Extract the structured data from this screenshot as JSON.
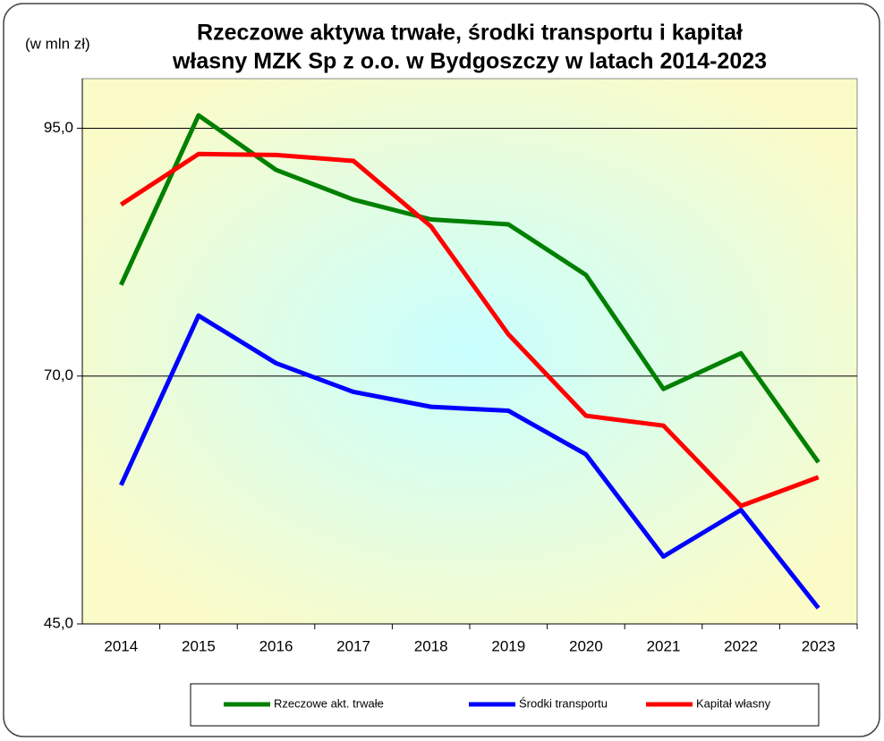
{
  "chart_data": {
    "type": "line",
    "title": [
      "Rzeczowe aktywa trwałe, środki transportu i kapitał",
      "własny MZK Sp z o.o. w Bydgoszczy w latach 2014-2023"
    ],
    "y_axis_label": "(w mln zł)",
    "categories": [
      "2014",
      "2015",
      "2016",
      "2017",
      "2018",
      "2019",
      "2020",
      "2021",
      "2022",
      "2023"
    ],
    "series": [
      {
        "name": "Rzeczowe akt. trwałe",
        "color": "#008000",
        "values": [
          79.2,
          96.3,
          90.8,
          87.8,
          85.8,
          85.3,
          80.2,
          68.7,
          72.3,
          61.3
        ]
      },
      {
        "name": "Środki transportu",
        "color": "#0000ff",
        "values": [
          59.0,
          76.1,
          71.3,
          68.4,
          66.9,
          66.5,
          62.1,
          51.8,
          56.5,
          46.6
        ]
      },
      {
        "name": "Kapitał własny",
        "color": "#ff0000",
        "values": [
          87.3,
          92.4,
          92.3,
          91.7,
          85.1,
          74.2,
          66.0,
          65.0,
          56.9,
          59.8
        ]
      }
    ],
    "ylim": [
      45,
      100
    ],
    "yticks": [
      {
        "value": 45,
        "label": "45,0"
      },
      {
        "value": 70,
        "label": "70,0"
      },
      {
        "value": 95,
        "label": "95,0"
      }
    ],
    "grid": true,
    "legend": "bottom"
  }
}
